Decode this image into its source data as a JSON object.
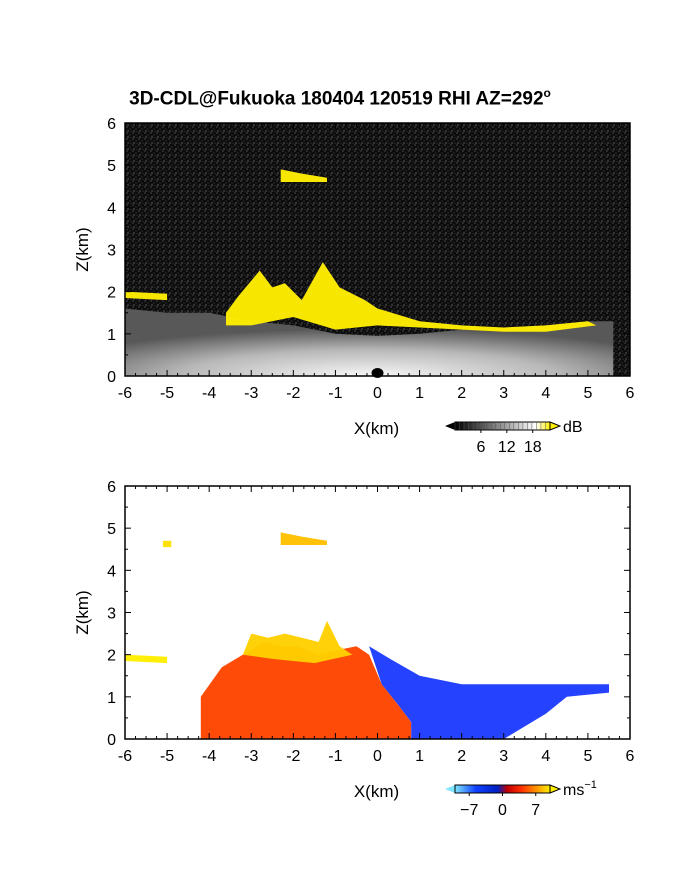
{
  "title": {
    "text": "3D-CDL@Fukuoka 180404 120519 RHI AZ=292",
    "degree": "o"
  },
  "chart_data": [
    {
      "type": "heatmap",
      "panel": "reflectivity",
      "xlabel": "X(km)",
      "ylabel": "Z(km)",
      "xlim": [
        -6,
        6
      ],
      "ylim": [
        0,
        6
      ],
      "xticks": [
        "-6",
        "-5",
        "-4",
        "-3",
        "-2",
        "-1",
        "0",
        "1",
        "2",
        "3",
        "4",
        "5",
        "6"
      ],
      "yticks": [
        "0",
        "1",
        "2",
        "3",
        "4",
        "5",
        "6"
      ],
      "colorbar": {
        "unit": "dB",
        "ticks": [
          "6",
          "12",
          "18"
        ],
        "tick_values": [
          6,
          12,
          18
        ],
        "range": [
          0,
          22
        ],
        "colors": [
          "#000000",
          "#ffffff",
          "#ffee00"
        ]
      },
      "background_color": "#000000",
      "features": [
        {
          "name": "near-ground-echo",
          "color": "#d9d9d9",
          "boundary": [
            [
              -6,
              1.6
            ],
            [
              -5,
              1.5
            ],
            [
              -4,
              1.5
            ],
            [
              -3,
              1.3
            ],
            [
              -2,
              1.2
            ],
            [
              -1,
              1.0
            ],
            [
              0,
              0.95
            ],
            [
              1,
              1.0
            ],
            [
              2,
              1.1
            ],
            [
              3,
              1.15
            ],
            [
              4,
              1.2
            ],
            [
              5,
              1.3
            ],
            [
              5.6,
              1.3
            ],
            [
              5.6,
              0
            ],
            [
              -6,
              0
            ]
          ]
        },
        {
          "name": "high-echo-yellow",
          "color": "#ffee00",
          "boundary": [
            [
              -3.6,
              1.5
            ],
            [
              -3.3,
              1.9
            ],
            [
              -2.8,
              2.5
            ],
            [
              -2.5,
              2.1
            ],
            [
              -2.2,
              2.2
            ],
            [
              -1.8,
              1.8
            ],
            [
              -1.3,
              2.7
            ],
            [
              -0.9,
              2.1
            ],
            [
              -0.3,
              1.8
            ],
            [
              0,
              1.6
            ],
            [
              1,
              1.3
            ],
            [
              2,
              1.2
            ],
            [
              3,
              1.15
            ],
            [
              4,
              1.2
            ],
            [
              5,
              1.3
            ],
            [
              5.2,
              1.2
            ],
            [
              4,
              1.05
            ],
            [
              3,
              1.05
            ],
            [
              2,
              1.1
            ],
            [
              1,
              1.15
            ],
            [
              0,
              1.2
            ],
            [
              -1,
              1.1
            ],
            [
              -2,
              1.4
            ],
            [
              -3,
              1.2
            ],
            [
              -3.6,
              1.2
            ]
          ]
        },
        {
          "name": "elevated-layer",
          "color": "#ffee00",
          "boundary": [
            [
              -2.3,
              4.9
            ],
            [
              -1.8,
              4.8
            ],
            [
              -1.2,
              4.7
            ],
            [
              -1.2,
              4.6
            ],
            [
              -2.3,
              4.6
            ]
          ]
        },
        {
          "name": "left-layer",
          "color": "#ffee00",
          "boundary": [
            [
              -6,
              2.0
            ],
            [
              -5,
              1.95
            ],
            [
              -5,
              1.8
            ],
            [
              -6,
              1.85
            ]
          ]
        }
      ]
    },
    {
      "type": "heatmap",
      "panel": "doppler-velocity",
      "xlabel": "X(km)",
      "ylabel": "Z(km)",
      "xlim": [
        -6,
        6
      ],
      "ylim": [
        0,
        6
      ],
      "xticks": [
        "-6",
        "-5",
        "-4",
        "-3",
        "-2",
        "-1",
        "0",
        "1",
        "2",
        "3",
        "4",
        "5",
        "6"
      ],
      "yticks": [
        "0",
        "1",
        "2",
        "3",
        "4",
        "5",
        "6"
      ],
      "colorbar": {
        "unit": "ms",
        "unit_exponent": "−1",
        "ticks": [
          "−7",
          "0",
          "7"
        ],
        "tick_values": [
          -7,
          0,
          7
        ],
        "range": [
          -10,
          10
        ],
        "colors": [
          "#7fe6ff",
          "#1040ff",
          "#0020c0",
          "#c00000",
          "#ff3000",
          "#ff9000",
          "#ffee00"
        ]
      },
      "background_color": "#ffffff",
      "features": [
        {
          "name": "receding-flow",
          "color": "#ff4500",
          "boundary": [
            [
              -4.2,
              1.0
            ],
            [
              -3.7,
              1.7
            ],
            [
              -3.2,
              2.0
            ],
            [
              -2.7,
              2.3
            ],
            [
              -2.3,
              2.2
            ],
            [
              -1.9,
              2.2
            ],
            [
              -1.4,
              2.0
            ],
            [
              -1.0,
              2.1
            ],
            [
              -0.5,
              2.2
            ],
            [
              -0.2,
              2.0
            ],
            [
              0.1,
              1.3
            ],
            [
              0.5,
              0.8
            ],
            [
              0.8,
              0.4
            ],
            [
              0.8,
              0
            ],
            [
              -4.2,
              0
            ]
          ]
        },
        {
          "name": "upper-yellow",
          "color": "#ffd000",
          "boundary": [
            [
              -3.2,
              2.0
            ],
            [
              -3.0,
              2.5
            ],
            [
              -2.6,
              2.4
            ],
            [
              -2.2,
              2.5
            ],
            [
              -1.8,
              2.4
            ],
            [
              -1.4,
              2.3
            ],
            [
              -1.2,
              2.8
            ],
            [
              -0.9,
              2.2
            ],
            [
              -0.6,
              2.0
            ],
            [
              -1.5,
              1.8
            ],
            [
              -2.5,
              1.9
            ]
          ]
        },
        {
          "name": "approaching-flow",
          "color": "#1e3cff",
          "boundary": [
            [
              -0.2,
              2.2
            ],
            [
              0.3,
              1.9
            ],
            [
              1,
              1.5
            ],
            [
              2,
              1.3
            ],
            [
              3,
              1.3
            ],
            [
              4,
              1.3
            ],
            [
              5,
              1.3
            ],
            [
              5.5,
              1.3
            ],
            [
              5.5,
              1.1
            ],
            [
              4.5,
              1.0
            ],
            [
              4,
              0.6
            ],
            [
              3.5,
              0.3
            ],
            [
              3,
              0
            ],
            [
              0.8,
              0
            ],
            [
              0.8,
              0.4
            ],
            [
              0.5,
              0.8
            ],
            [
              0.1,
              1.3
            ]
          ]
        },
        {
          "name": "elevated-layer",
          "color": "#ffc000",
          "boundary": [
            [
              -2.3,
              4.9
            ],
            [
              -1.8,
              4.8
            ],
            [
              -1.2,
              4.7
            ],
            [
              -1.2,
              4.6
            ],
            [
              -2.3,
              4.6
            ]
          ]
        },
        {
          "name": "left-layer",
          "color": "#ffee00",
          "boundary": [
            [
              -6,
              2.0
            ],
            [
              -5,
              1.95
            ],
            [
              -5,
              1.8
            ],
            [
              -6,
              1.85
            ]
          ]
        },
        {
          "name": "left-patch",
          "color": "#ffe000",
          "boundary": [
            [
              -5.1,
              4.7
            ],
            [
              -4.9,
              4.7
            ],
            [
              -4.9,
              4.55
            ],
            [
              -5.1,
              4.55
            ]
          ]
        }
      ]
    }
  ]
}
